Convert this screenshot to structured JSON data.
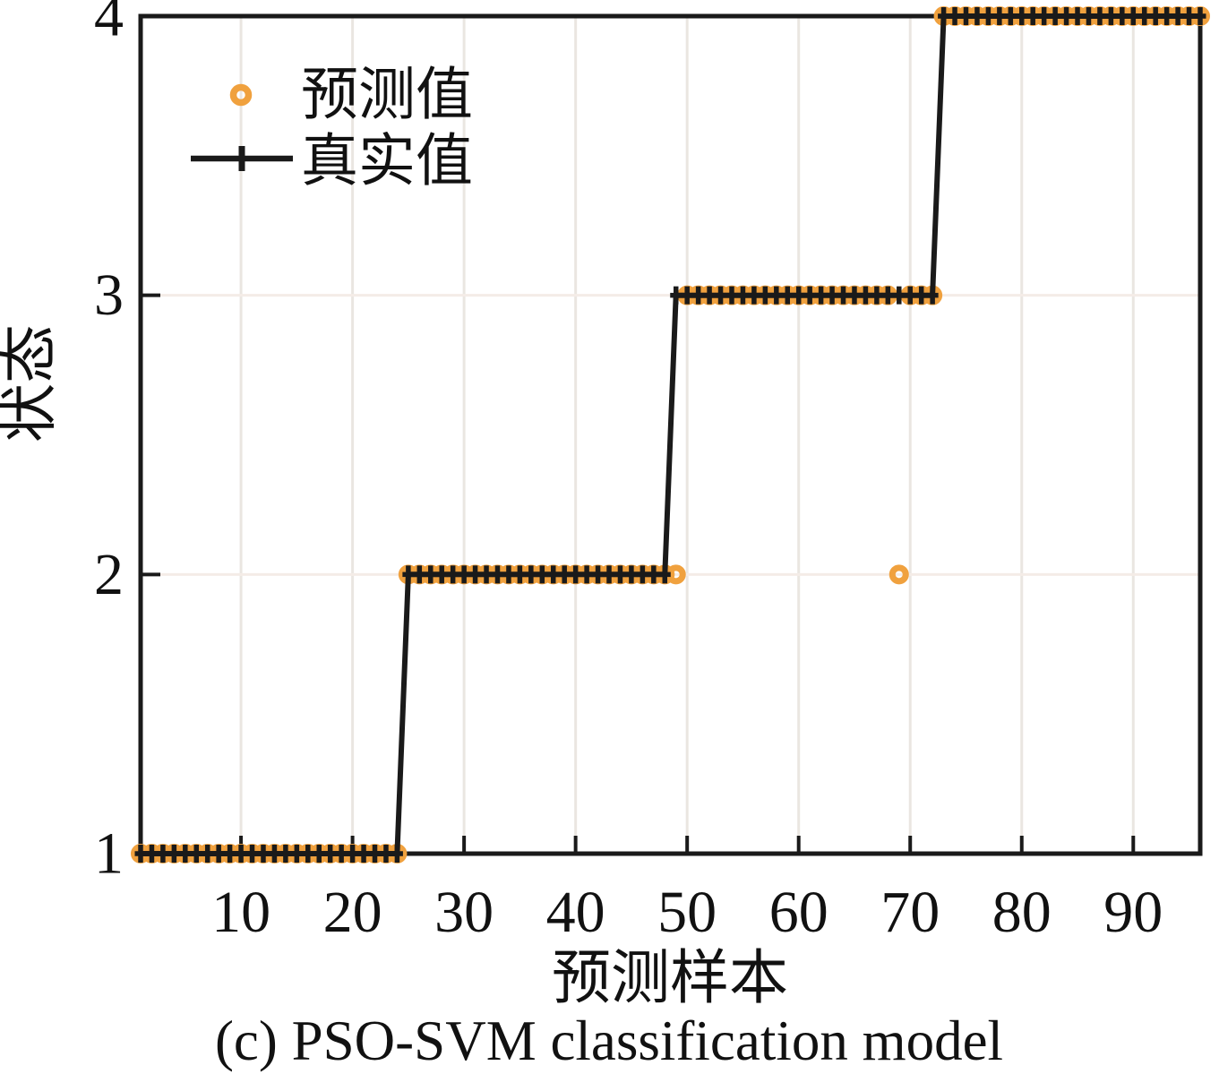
{
  "figure": {
    "caption": "(c) PSO-SVM classification model"
  },
  "legend": {
    "items": [
      {
        "label": "预测值",
        "marker": "open-circle",
        "color": "#F0A13E"
      },
      {
        "label": "真实值",
        "marker": "plus-line",
        "color": "#1A1A1A"
      }
    ]
  },
  "colors": {
    "predicted": "#F0A13E",
    "actual": "#1A1A1A",
    "spine": "#1A1A1A",
    "tick": "#1A1A1A",
    "grid_vertical": "#EAE6E1",
    "grid_horizontal": "#F4ECE7",
    "background": "#FFFFFF"
  },
  "chart_data": {
    "type": "line",
    "title": "",
    "xlabel": "预测样本",
    "ylabel": "状态",
    "xlim": [
      1,
      96
    ],
    "ylim": [
      1,
      4
    ],
    "x_ticks": [
      10,
      20,
      30,
      40,
      50,
      60,
      70,
      80,
      90
    ],
    "y_ticks": [
      1,
      2,
      3,
      4
    ],
    "grid": true,
    "legend_position": "top-left",
    "samples": [
      1,
      2,
      3,
      4,
      5,
      6,
      7,
      8,
      9,
      10,
      11,
      12,
      13,
      14,
      15,
      16,
      17,
      18,
      19,
      20,
      21,
      22,
      23,
      24,
      25,
      26,
      27,
      28,
      29,
      30,
      31,
      32,
      33,
      34,
      35,
      36,
      37,
      38,
      39,
      40,
      41,
      42,
      43,
      44,
      45,
      46,
      47,
      48,
      49,
      50,
      51,
      52,
      53,
      54,
      55,
      56,
      57,
      58,
      59,
      60,
      61,
      62,
      63,
      64,
      65,
      66,
      67,
      68,
      69,
      70,
      71,
      72,
      73,
      74,
      75,
      76,
      77,
      78,
      79,
      80,
      81,
      82,
      83,
      84,
      85,
      86,
      87,
      88,
      89,
      90,
      91,
      92,
      93,
      94,
      95,
      96
    ],
    "series": [
      {
        "name": "预测值",
        "type": "scatter",
        "marker": "open-circle",
        "color": "#F0A13E",
        "values": [
          1,
          1,
          1,
          1,
          1,
          1,
          1,
          1,
          1,
          1,
          1,
          1,
          1,
          1,
          1,
          1,
          1,
          1,
          1,
          1,
          1,
          1,
          1,
          1,
          2,
          2,
          2,
          2,
          2,
          2,
          2,
          2,
          2,
          2,
          2,
          2,
          2,
          2,
          2,
          2,
          2,
          2,
          2,
          2,
          2,
          2,
          2,
          2,
          2,
          3,
          3,
          3,
          3,
          3,
          3,
          3,
          3,
          3,
          3,
          3,
          3,
          3,
          3,
          3,
          3,
          3,
          3,
          3,
          2,
          3,
          3,
          3,
          4,
          4,
          4,
          4,
          4,
          4,
          4,
          4,
          4,
          4,
          4,
          4,
          4,
          4,
          4,
          4,
          4,
          4,
          4,
          4,
          4,
          4,
          4,
          4
        ]
      },
      {
        "name": "真实值",
        "type": "step-line",
        "marker": "plus",
        "color": "#1A1A1A",
        "values": [
          1,
          1,
          1,
          1,
          1,
          1,
          1,
          1,
          1,
          1,
          1,
          1,
          1,
          1,
          1,
          1,
          1,
          1,
          1,
          1,
          1,
          1,
          1,
          1,
          2,
          2,
          2,
          2,
          2,
          2,
          2,
          2,
          2,
          2,
          2,
          2,
          2,
          2,
          2,
          2,
          2,
          2,
          2,
          2,
          2,
          2,
          2,
          2,
          3,
          3,
          3,
          3,
          3,
          3,
          3,
          3,
          3,
          3,
          3,
          3,
          3,
          3,
          3,
          3,
          3,
          3,
          3,
          3,
          3,
          3,
          3,
          3,
          4,
          4,
          4,
          4,
          4,
          4,
          4,
          4,
          4,
          4,
          4,
          4,
          4,
          4,
          4,
          4,
          4,
          4,
          4,
          4,
          4,
          4,
          4,
          4
        ]
      }
    ],
    "misclassified_samples": [
      {
        "sample": 49,
        "predicted": 2,
        "actual": 3
      },
      {
        "sample": 69,
        "predicted": 2,
        "actual": 3
      }
    ]
  }
}
